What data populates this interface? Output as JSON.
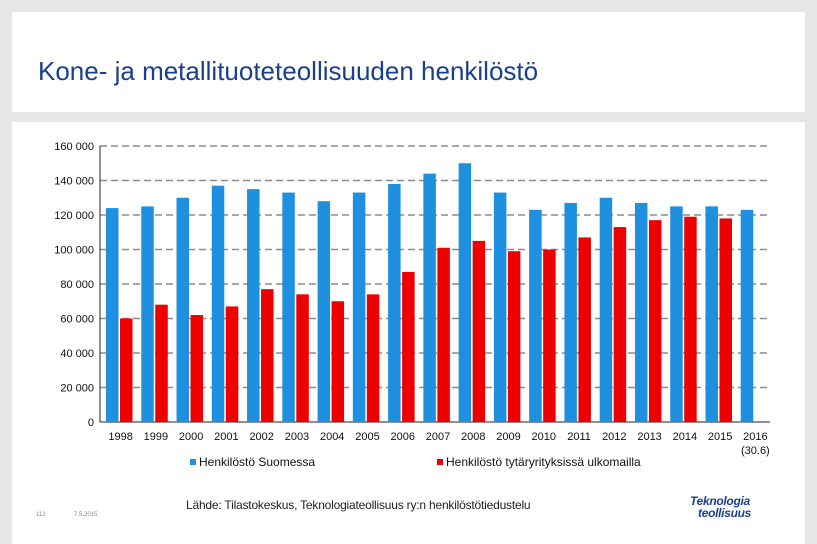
{
  "header": {
    "title": "Kone- ja metallituoteteollisuuden henkilöstö"
  },
  "colors": {
    "series1": "#1f8fe0",
    "series2": "#ee0000",
    "title": "#1a3f8f"
  },
  "chart_data": {
    "type": "bar",
    "title": "Kone- ja metallituoteteollisuuden henkilöstö",
    "categories": [
      "1998",
      "1999",
      "2000",
      "2001",
      "2002",
      "2003",
      "2004",
      "2005",
      "2006",
      "2007",
      "2008",
      "2009",
      "2010",
      "2011",
      "2012",
      "2013",
      "2014",
      "2015",
      "2016"
    ],
    "category_sublabels": {
      "2016": "(30.6)"
    },
    "series": [
      {
        "name": "Henkilöstö Suomessa",
        "color": "#1f8fe0",
        "values": [
          124000,
          125000,
          130000,
          137000,
          135000,
          133000,
          128000,
          133000,
          138000,
          144000,
          150000,
          133000,
          123000,
          127000,
          130000,
          127000,
          125000,
          125000,
          123000
        ]
      },
      {
        "name": "Henkilöstö tytäryrityksissä ulkomailla",
        "color": "#ee0000",
        "values": [
          60000,
          68000,
          62000,
          67000,
          77000,
          74000,
          70000,
          74000,
          87000,
          101000,
          105000,
          99000,
          100000,
          107000,
          113000,
          117000,
          119000,
          118000,
          null
        ]
      }
    ],
    "yticks": [
      "0",
      "20 000",
      "40 000",
      "60 000",
      "80 000",
      "100 000",
      "120 000",
      "140 000",
      "160 000"
    ],
    "ylim": [
      0,
      160000
    ],
    "xlabel": "",
    "ylabel": "",
    "grid": true,
    "legend": "bottom"
  },
  "footer": {
    "source": "Lähde: Tilastokeskus, Teknologiateollisuus ry:n henkilöstötiedustelu",
    "page": "112",
    "date": "7.5.2015",
    "logo_line1": "Teknologia",
    "logo_line2": "teollisuus"
  }
}
